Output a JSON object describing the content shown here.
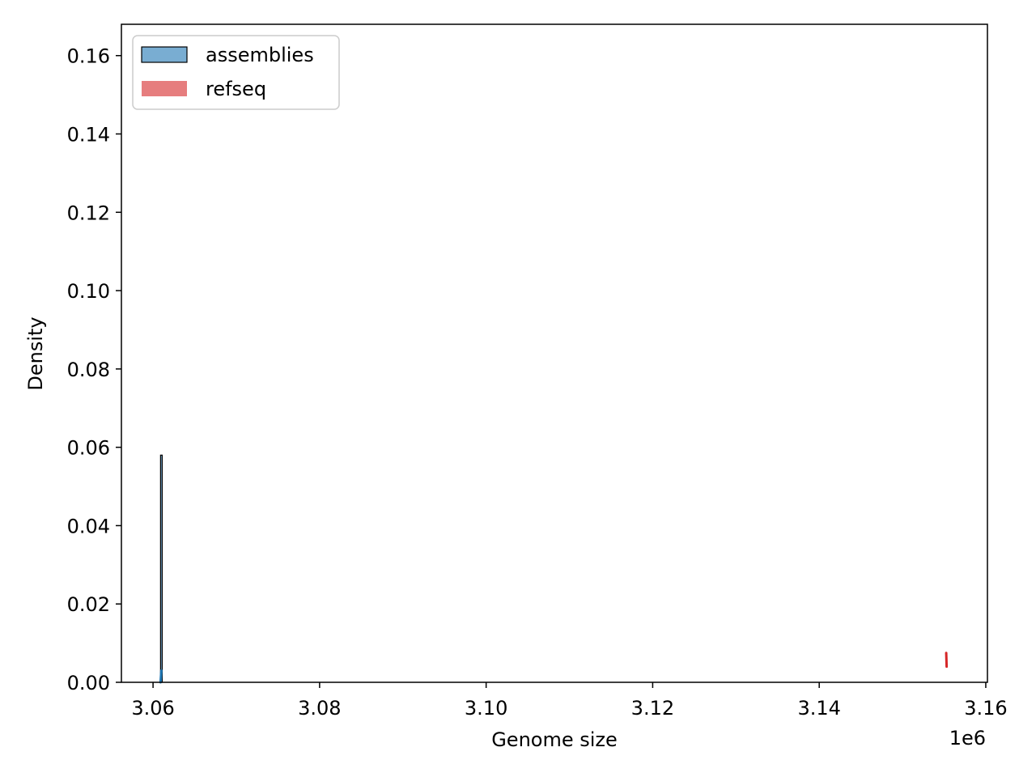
{
  "chart_data": {
    "type": "bar",
    "xlabel": "Genome size",
    "ylabel": "Density",
    "x_offset_label": "1e6",
    "xlim": [
      3.0562,
      3.1602
    ],
    "ylim": [
      0,
      0.168
    ],
    "x_ticks": [
      3.06,
      3.08,
      3.1,
      3.12,
      3.14,
      3.16
    ],
    "x_tick_labels": [
      "3.06",
      "3.08",
      "3.10",
      "3.12",
      "3.14",
      "3.16"
    ],
    "y_ticks": [
      0.0,
      0.02,
      0.04,
      0.06,
      0.08,
      0.1,
      0.12,
      0.14,
      0.16
    ],
    "y_tick_labels": [
      "0.00",
      "0.02",
      "0.04",
      "0.06",
      "0.08",
      "0.10",
      "0.12",
      "0.14",
      "0.16"
    ],
    "grid": false,
    "legend_position": "upper left",
    "series": [
      {
        "name": "assemblies",
        "color": "#1f77b4",
        "histogram_bins": [
          {
            "x_start": 3.0609,
            "x_end": 3.0611,
            "density": 0.058
          }
        ],
        "kde_segment": [
          [
            3.0609,
            0.0
          ],
          [
            3.06095,
            0.0015
          ],
          [
            3.061,
            0.003
          ]
        ]
      },
      {
        "name": "refseq",
        "color": "#d62728",
        "histogram_bins": [],
        "kde_segment": [
          [
            3.15525,
            0.0075
          ],
          [
            3.1553,
            0.004
          ]
        ]
      }
    ]
  }
}
